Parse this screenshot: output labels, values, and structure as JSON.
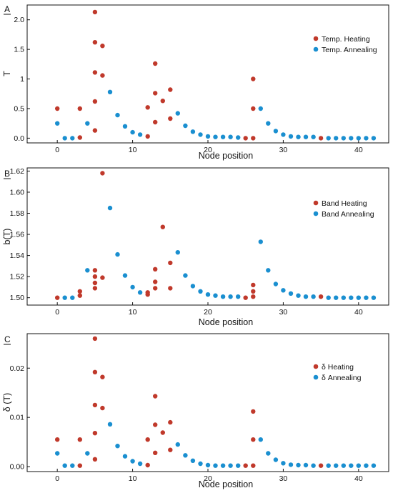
{
  "colors": {
    "heating": "#c0392b",
    "annealing": "#1a8fd0"
  },
  "chart_data": [
    {
      "type": "scatter",
      "panel": "A",
      "xlabel": "Node position",
      "ylabel": "T",
      "xlim": [
        -4,
        44
      ],
      "ylim": [
        -0.08,
        2.25
      ],
      "xticks": [
        0,
        10,
        20,
        30,
        40
      ],
      "xtick_labels": [
        "0",
        "10",
        "20",
        "30",
        "40"
      ],
      "yticks": [
        0,
        0.5,
        1,
        1.5,
        2
      ],
      "ytick_labels": [
        "0.0",
        "0.5",
        "1",
        "1.5",
        "2.0"
      ],
      "legend_position": "top-right",
      "grid": false,
      "series": [
        {
          "name": "Temp. Heating",
          "color": "#c0392b",
          "points": [
            [
              0,
              0.5
            ],
            [
              3,
              0.01
            ],
            [
              3,
              0.5
            ],
            [
              5,
              0.13
            ],
            [
              5,
              0.62
            ],
            [
              5,
              1.11
            ],
            [
              5,
              1.62
            ],
            [
              5,
              2.13
            ],
            [
              6,
              1.06
            ],
            [
              6,
              1.56
            ],
            [
              12,
              0.03
            ],
            [
              12,
              0.52
            ],
            [
              13,
              0.27
            ],
            [
              13,
              0.76
            ],
            [
              13,
              1.26
            ],
            [
              14,
              0.63
            ],
            [
              15,
              0.33
            ],
            [
              15,
              0.82
            ],
            [
              25,
              0.0
            ],
            [
              26,
              0.0
            ],
            [
              26,
              0.5
            ],
            [
              26,
              1.0
            ],
            [
              35,
              0.0
            ]
          ]
        },
        {
          "name": "Temp. Annealing",
          "color": "#1a8fd0",
          "points": [
            [
              0,
              0.25
            ],
            [
              1,
              0.0
            ],
            [
              2,
              0.0
            ],
            [
              4,
              0.25
            ],
            [
              7,
              0.78
            ],
            [
              8,
              0.39
            ],
            [
              9,
              0.2
            ],
            [
              10,
              0.1
            ],
            [
              11,
              0.06
            ],
            [
              16,
              0.42
            ],
            [
              17,
              0.21
            ],
            [
              18,
              0.11
            ],
            [
              19,
              0.06
            ],
            [
              20,
              0.03
            ],
            [
              21,
              0.02
            ],
            [
              22,
              0.02
            ],
            [
              23,
              0.02
            ],
            [
              24,
              0.01
            ],
            [
              27,
              0.5
            ],
            [
              28,
              0.25
            ],
            [
              29,
              0.12
            ],
            [
              30,
              0.06
            ],
            [
              31,
              0.03
            ],
            [
              32,
              0.02
            ],
            [
              33,
              0.02
            ],
            [
              34,
              0.02
            ],
            [
              36,
              0.0
            ],
            [
              37,
              0.0
            ],
            [
              38,
              0.0
            ],
            [
              39,
              0.0
            ],
            [
              40,
              0.0
            ],
            [
              41,
              0.0
            ],
            [
              42,
              0.0
            ]
          ]
        }
      ]
    },
    {
      "type": "scatter",
      "panel": "B",
      "xlabel": "Node position",
      "ylabel": "b(T)",
      "xlim": [
        -4,
        44
      ],
      "ylim": [
        1.493,
        1.623
      ],
      "xticks": [
        0,
        10,
        20,
        30,
        40
      ],
      "xtick_labels": [
        "0",
        "10",
        "20",
        "30",
        "40"
      ],
      "yticks": [
        1.5,
        1.52,
        1.54,
        1.56,
        1.58,
        1.6,
        1.62
      ],
      "ytick_labels": [
        "1.50",
        "1.52",
        "1.54",
        "1.56",
        "1.58",
        "1.60",
        "1.62"
      ],
      "legend_position": "top-right",
      "grid": false,
      "series": [
        {
          "name": "Band Heating",
          "color": "#c0392b",
          "points": [
            [
              0,
              1.5
            ],
            [
              3,
              1.502
            ],
            [
              3,
              1.506
            ],
            [
              5,
              1.509
            ],
            [
              5,
              1.514
            ],
            [
              5,
              1.52
            ],
            [
              5,
              1.526
            ],
            [
              6,
              1.519
            ],
            [
              6,
              1.618
            ],
            [
              12,
              1.503
            ],
            [
              12,
              1.505
            ],
            [
              13,
              1.509
            ],
            [
              13,
              1.515
            ],
            [
              13,
              1.527
            ],
            [
              14,
              1.567
            ],
            [
              15,
              1.509
            ],
            [
              15,
              1.533
            ],
            [
              25,
              1.5
            ],
            [
              26,
              1.501
            ],
            [
              26,
              1.506
            ],
            [
              26,
              1.512
            ],
            [
              35,
              1.501
            ]
          ]
        },
        {
          "name": "Band Annealing",
          "color": "#1a8fd0",
          "points": [
            [
              1,
              1.5
            ],
            [
              2,
              1.5
            ],
            [
              4,
              1.526
            ],
            [
              7,
              1.585
            ],
            [
              8,
              1.541
            ],
            [
              9,
              1.521
            ],
            [
              10,
              1.51
            ],
            [
              11,
              1.505
            ],
            [
              16,
              1.543
            ],
            [
              17,
              1.521
            ],
            [
              18,
              1.511
            ],
            [
              19,
              1.506
            ],
            [
              20,
              1.503
            ],
            [
              21,
              1.502
            ],
            [
              22,
              1.501
            ],
            [
              23,
              1.501
            ],
            [
              24,
              1.501
            ],
            [
              27,
              1.553
            ],
            [
              28,
              1.526
            ],
            [
              29,
              1.513
            ],
            [
              30,
              1.507
            ],
            [
              31,
              1.504
            ],
            [
              32,
              1.502
            ],
            [
              33,
              1.501
            ],
            [
              34,
              1.501
            ],
            [
              36,
              1.5
            ],
            [
              37,
              1.5
            ],
            [
              38,
              1.5
            ],
            [
              39,
              1.5
            ],
            [
              40,
              1.5
            ],
            [
              41,
              1.5
            ],
            [
              42,
              1.5
            ]
          ]
        }
      ]
    },
    {
      "type": "scatter",
      "panel": "C",
      "xlabel": "Node position",
      "ylabel": "δ (T)",
      "xlim": [
        -4,
        44
      ],
      "ylim": [
        -0.001,
        0.027
      ],
      "xticks": [
        0,
        10,
        20,
        30,
        40
      ],
      "xtick_labels": [
        "0",
        "10",
        "20",
        "30",
        "40"
      ],
      "yticks": [
        0,
        0.01,
        0.02
      ],
      "ytick_labels": [
        "0.00",
        "0.01",
        "0.02"
      ],
      "legend_position": "top-right",
      "grid": false,
      "series": [
        {
          "name": "δ Heating",
          "color": "#c0392b",
          "points": [
            [
              0,
              0.0055
            ],
            [
              3,
              0.0002
            ],
            [
              3,
              0.0055
            ],
            [
              5,
              0.0015
            ],
            [
              5,
              0.0068
            ],
            [
              5,
              0.0125
            ],
            [
              5,
              0.0192
            ],
            [
              5,
              0.026
            ],
            [
              6,
              0.0119
            ],
            [
              6,
              0.0182
            ],
            [
              12,
              0.0003
            ],
            [
              12,
              0.0055
            ],
            [
              13,
              0.0028
            ],
            [
              13,
              0.0085
            ],
            [
              13,
              0.0143
            ],
            [
              14,
              0.0069
            ],
            [
              15,
              0.0034
            ],
            [
              15,
              0.009
            ],
            [
              25,
              0.0002
            ],
            [
              26,
              0.0002
            ],
            [
              26,
              0.0055
            ],
            [
              26,
              0.0112
            ],
            [
              35,
              0.0002
            ]
          ]
        },
        {
          "name": "δ Annealing",
          "color": "#1a8fd0",
          "points": [
            [
              0,
              0.0027
            ],
            [
              1,
              0.0002
            ],
            [
              2,
              0.0002
            ],
            [
              4,
              0.0027
            ],
            [
              7,
              0.0086
            ],
            [
              8,
              0.0042
            ],
            [
              9,
              0.0021
            ],
            [
              10,
              0.0011
            ],
            [
              11,
              0.0006
            ],
            [
              16,
              0.0045
            ],
            [
              17,
              0.0023
            ],
            [
              18,
              0.0012
            ],
            [
              19,
              0.0006
            ],
            [
              20,
              0.0003
            ],
            [
              21,
              0.0002
            ],
            [
              22,
              0.0002
            ],
            [
              23,
              0.0002
            ],
            [
              24,
              0.0002
            ],
            [
              27,
              0.0055
            ],
            [
              28,
              0.0027
            ],
            [
              29,
              0.0014
            ],
            [
              30,
              0.0007
            ],
            [
              31,
              0.0004
            ],
            [
              32,
              0.0003
            ],
            [
              33,
              0.0003
            ],
            [
              34,
              0.0002
            ],
            [
              36,
              0.0002
            ],
            [
              37,
              0.0002
            ],
            [
              38,
              0.0002
            ],
            [
              39,
              0.0002
            ],
            [
              40,
              0.0002
            ],
            [
              41,
              0.0002
            ],
            [
              42,
              0.0002
            ]
          ]
        }
      ]
    }
  ]
}
